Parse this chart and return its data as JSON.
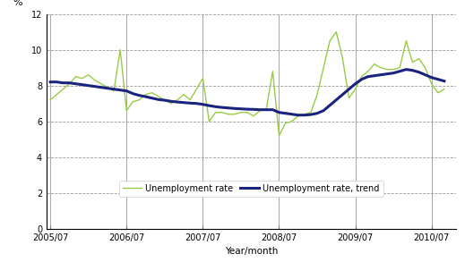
{
  "xlabel": "Year/month",
  "ylabel": "%",
  "ylim": [
    0,
    12
  ],
  "yticks": [
    0,
    2,
    4,
    6,
    8,
    10,
    12
  ],
  "xtick_labels": [
    "2005/07",
    "2006/07",
    "2007/07",
    "2008/07",
    "2009/07",
    "2010/07"
  ],
  "bg_color": "#ffffff",
  "grid_color": "#999999",
  "unemployment_rate_color": "#99cc44",
  "trend_color": "#1a237e",
  "legend_unemployment": "Unemployment rate",
  "legend_trend": "Unemployment rate, trend",
  "unemployment_rate": [
    7.2,
    7.5,
    7.8,
    8.1,
    8.5,
    8.4,
    8.6,
    8.3,
    8.1,
    7.9,
    7.7,
    10.0,
    6.6,
    7.1,
    7.2,
    7.5,
    7.6,
    7.4,
    7.2,
    7.0,
    7.2,
    7.5,
    7.2,
    7.8,
    8.4,
    6.0,
    6.5,
    6.5,
    6.4,
    6.4,
    6.5,
    6.5,
    6.3,
    6.6,
    6.7,
    8.8,
    5.2,
    5.9,
    6.0,
    6.3,
    6.4,
    6.5,
    7.5,
    9.0,
    10.5,
    11.0,
    9.5,
    7.3,
    7.8,
    8.5,
    8.8,
    9.2,
    9.0,
    8.9,
    8.9,
    9.0,
    10.5,
    9.3,
    9.5,
    9.0,
    8.1,
    7.6,
    7.8
  ],
  "trend": [
    8.2,
    8.2,
    8.15,
    8.15,
    8.1,
    8.05,
    8.0,
    7.95,
    7.9,
    7.85,
    7.8,
    7.75,
    7.7,
    7.55,
    7.45,
    7.38,
    7.3,
    7.22,
    7.18,
    7.12,
    7.08,
    7.05,
    7.02,
    7.0,
    6.95,
    6.88,
    6.82,
    6.78,
    6.75,
    6.72,
    6.7,
    6.68,
    6.67,
    6.65,
    6.65,
    6.65,
    6.5,
    6.45,
    6.4,
    6.35,
    6.35,
    6.38,
    6.45,
    6.6,
    6.9,
    7.2,
    7.5,
    7.8,
    8.1,
    8.35,
    8.5,
    8.55,
    8.6,
    8.65,
    8.7,
    8.8,
    8.9,
    8.85,
    8.75,
    8.6,
    8.45,
    8.35,
    8.25
  ],
  "n_points": 63,
  "start_year": 2005,
  "start_month": 7
}
